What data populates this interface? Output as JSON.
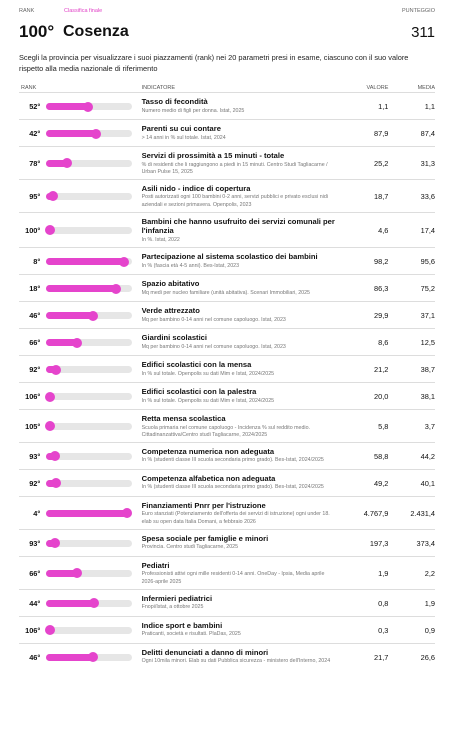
{
  "header": {
    "rank_label": "RANK",
    "tab": "Classifica finale",
    "score_label": "PUNTEGGIO",
    "rank": "100°",
    "province": "Cosenza",
    "score": "311",
    "description": "Scegli la provincia per visualizzare i suoi piazzamenti (rank) nei 20 parametri presi in esame, ciascuno con il suo valore rispetto alla media nazionale di riferimento"
  },
  "table": {
    "columns": [
      "RANK",
      "INDICATORE",
      "VALORE",
      "MEDIA"
    ],
    "rows": [
      {
        "rank": 52,
        "rank_label": "52°",
        "title": "Tasso di fecondità",
        "note": "Numero medio di figli per donna. Istat, 2025",
        "value": "1,1",
        "average": "1,1"
      },
      {
        "rank": 42,
        "rank_label": "42°",
        "title": "Parenti su cui contare",
        "note": "> 14 anni in % sul totale. Istat, 2024",
        "value": "87,9",
        "average": "87,4"
      },
      {
        "rank": 78,
        "rank_label": "78°",
        "title": "Servizi di prossimità a 15 minuti - totale",
        "note": "% di residenti che li raggiungono a piedi in 15 minuti. Centro Studi Tagliacarne / Urban Pulse 15, 2025",
        "value": "25,2",
        "average": "31,3"
      },
      {
        "rank": 95,
        "rank_label": "95°",
        "title": "Asili nido - indice di copertura",
        "note": "Posti autorizzati ogni 100 bambini 0-2 anni, servizi pubblici e privato esclusi nidi aziendali e sezioni primavera. Openpolis, 2023",
        "value": "18,7",
        "average": "33,6"
      },
      {
        "rank": 100,
        "rank_label": "100°",
        "title": "Bambini che hanno usufruito dei servizi comunali per l'infanzia",
        "note": "In %. Istat, 2022",
        "value": "4,6",
        "average": "17,4"
      },
      {
        "rank": 8,
        "rank_label": "8°",
        "title": "Partecipazione al sistema scolastico dei bambini",
        "note": "In % (fascia età 4-5 anni). Bes-Istat, 2023",
        "value": "98,2",
        "average": "95,6"
      },
      {
        "rank": 18,
        "rank_label": "18°",
        "title": "Spazio abitativo",
        "note": "Mq medi per nucleo familiare (unità abitativa). Scenari Immobiliari, 2025",
        "value": "86,3",
        "average": "75,2"
      },
      {
        "rank": 46,
        "rank_label": "46°",
        "title": "Verde attrezzato",
        "note": "Mq per bambino 0-14 anni nel comune capoluogo. Istat, 2023",
        "value": "29,9",
        "average": "37,1"
      },
      {
        "rank": 66,
        "rank_label": "66°",
        "title": "Giardini scolastici",
        "note": "Mq per bambino 0-14 anni nel comune capoluogo. Istat, 2023",
        "value": "8,6",
        "average": "12,5"
      },
      {
        "rank": 92,
        "rank_label": "92°",
        "title": "Edifici scolastici con la mensa",
        "note": "In % sul totale. Openpolis su dati Mim e Istat, 2024/2025",
        "value": "21,2",
        "average": "38,7"
      },
      {
        "rank": 106,
        "rank_label": "106°",
        "title": "Edifici scolastici con la palestra",
        "note": "In % sul totale. Openpolis su dati Mim e Istat, 2024/2025",
        "value": "20,0",
        "average": "38,1"
      },
      {
        "rank": 105,
        "rank_label": "105°",
        "title": "Retta mensa scolastica",
        "note": "Scuola primaria nel comune capoluogo - Incidenza % sul reddito medio. Cittadinanzattiva/Centro studi Tagliacarne, 2024/2025",
        "value": "5,8",
        "average": "3,7"
      },
      {
        "rank": 93,
        "rank_label": "93°",
        "title": "Competenza numerica non adeguata",
        "note": "In % (studenti classe III scuola secondaria primo grado). Bes-Istat, 2024/2025",
        "value": "58,8",
        "average": "44,2"
      },
      {
        "rank": 92,
        "rank_label": "92°",
        "title": "Competenza alfabetica non adeguata",
        "note": "In % (studenti classe III scuola secondaria primo grado). Bes-Istat, 2024/2025",
        "value": "49,2",
        "average": "40,1"
      },
      {
        "rank": 4,
        "rank_label": "4°",
        "title": "Finanziamenti Pnrr per l'istruzione",
        "note": "Euro stanziati (Potenziamento dell'offerta dei servizi di istruzione) ogni under 18. elab su open data Italia Domani, a febbraio 2026",
        "value": "4.767,9",
        "average": "2.431,4"
      },
      {
        "rank": 93,
        "rank_label": "93°",
        "title": "Spesa sociale per famiglie e minori",
        "note": "Provincia. Centro studi Tagliacarne, 2025",
        "value": "197,3",
        "average": "373,4"
      },
      {
        "rank": 66,
        "rank_label": "66°",
        "title": "Pediatri",
        "note": "Professionisti attivi ogni mille residenti 0-14 anni. OneDay - Ipsia, Media aprile 2026-aprile 2025",
        "value": "1,9",
        "average": "2,2"
      },
      {
        "rank": 44,
        "rank_label": "44°",
        "title": "Infermieri pediatrici",
        "note": "Fnopi/Istat, a ottobre 2025",
        "value": "0,8",
        "average": "1,9"
      },
      {
        "rank": 106,
        "rank_label": "106°",
        "title": "Indice sport e bambini",
        "note": "Praticanti, società e risultati. PlaDas, 2025",
        "value": "0,3",
        "average": "0,9"
      },
      {
        "rank": 46,
        "rank_label": "46°",
        "title": "Delitti denunciati a danno di minori",
        "note": "Ogni 10mila minori. Elab su dati Pubblica sicurezza - ministero dell'Interno, 2024",
        "value": "21,7",
        "average": "26,6"
      }
    ]
  }
}
